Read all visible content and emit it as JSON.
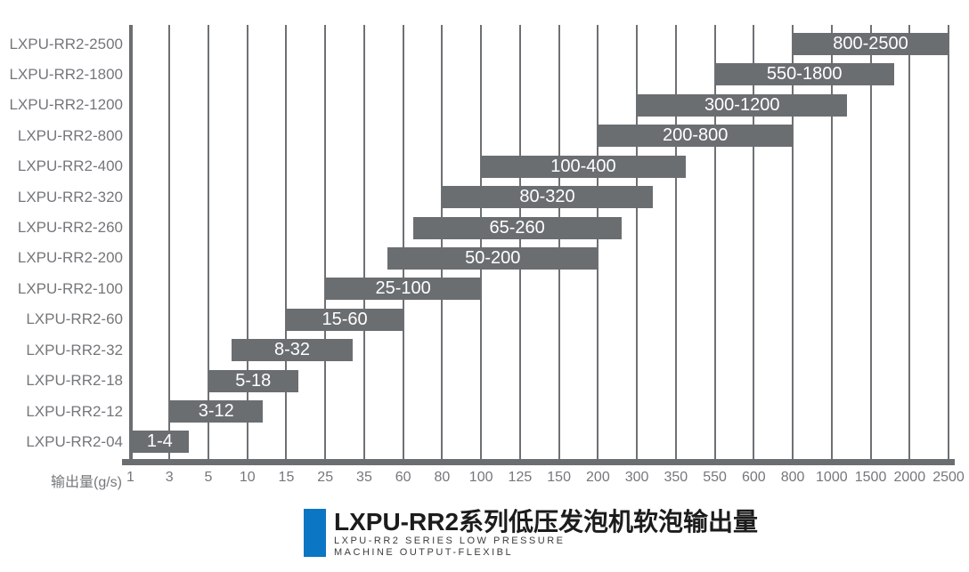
{
  "chart_data": {
    "type": "bar",
    "orientation": "horizontal",
    "title": "LXPU-RR2系列低压发泡机软泡输出量",
    "subtitle_line1": "LXPU-RR2 SERIES LOW PRESSURE",
    "subtitle_line2": "MACHINE OUTPUT-FLEXIBL",
    "xlabel": "输出量(g/s)",
    "x_ticks": [
      1,
      3,
      5,
      10,
      15,
      25,
      35,
      60,
      80,
      100,
      125,
      150,
      200,
      300,
      350,
      550,
      600,
      800,
      1000,
      1500,
      2000,
      2500
    ],
    "x_scale": "ordinal ticks, equal spacing, linear interpolation between ticks",
    "grid": true,
    "legend": "none",
    "rows": [
      {
        "model": "LXPU-RR2-2500",
        "label": "800-2500",
        "min": 800,
        "max": 2500
      },
      {
        "model": "LXPU-RR2-1800",
        "label": "550-1800",
        "min": 550,
        "max": 1800
      },
      {
        "model": "LXPU-RR2-1200",
        "label": "300-1200",
        "min": 300,
        "max": 1200
      },
      {
        "model": "LXPU-RR2-800",
        "label": "200-800",
        "min": 200,
        "max": 800
      },
      {
        "model": "LXPU-RR2-400",
        "label": "100-400",
        "min": 100,
        "max": 400
      },
      {
        "model": "LXPU-RR2-320",
        "label": "80-320",
        "min": 80,
        "max": 320
      },
      {
        "model": "LXPU-RR2-260",
        "label": "65-260",
        "min": 65,
        "max": 260
      },
      {
        "model": "LXPU-RR2-200",
        "label": "50-200",
        "min": 50,
        "max": 200
      },
      {
        "model": "LXPU-RR2-100",
        "label": "25-100",
        "min": 25,
        "max": 100
      },
      {
        "model": "LXPU-RR2-60",
        "label": "15-60",
        "min": 15,
        "max": 60
      },
      {
        "model": "LXPU-RR2-32",
        "label": "8-32",
        "min": 8,
        "max": 32
      },
      {
        "model": "LXPU-RR2-18",
        "label": "5-18",
        "min": 5,
        "max": 18
      },
      {
        "model": "LXPU-RR2-12",
        "label": "3-12",
        "min": 3,
        "max": 12
      },
      {
        "model": "LXPU-RR2-04",
        "label": "1-4",
        "min": 1,
        "max": 4
      }
    ],
    "colors": {
      "bar": "#6b6e71",
      "bar_label": "#ffffff",
      "grid_line": "#6e7174",
      "axis_line": "#6b6e71",
      "axis_text": "#74777a",
      "model_text": "#74777a",
      "title_text": "#1c1c1c",
      "subtitle_text": "#3c3c3c",
      "accent": "#0b76c4",
      "background": "#ffffff"
    }
  }
}
